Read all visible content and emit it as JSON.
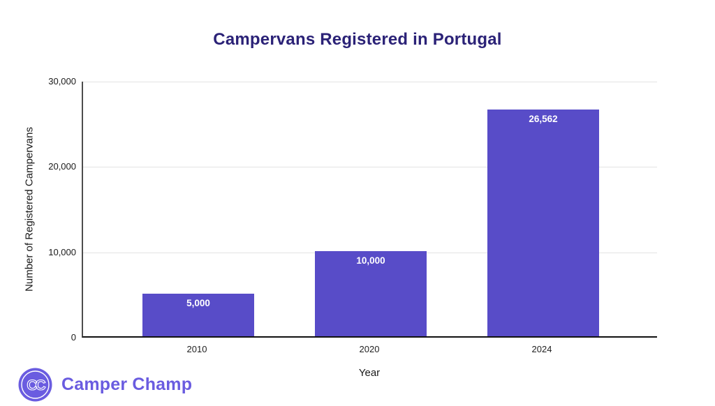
{
  "chart_data": {
    "type": "bar",
    "title": "Campervans Registered in Portugal",
    "categories": [
      "2010",
      "2020",
      "2024"
    ],
    "values": [
      5000,
      10000,
      26562
    ],
    "value_labels": [
      "5,000",
      "10,000",
      "26,562"
    ],
    "xlabel": "Year",
    "ylabel": "Number of Registered Campervans",
    "ylim": [
      0,
      30000
    ],
    "yticks": [
      0,
      10000,
      20000,
      30000
    ],
    "ytick_labels": [
      "0",
      "10,000",
      "20,000",
      "30,000"
    ],
    "grid": "horizontal",
    "legend": "none",
    "bar_color": "#584CC8",
    "bar_label_color": "#ffffff",
    "title_color": "#2B2277",
    "gridline_color": "#e3e3e3"
  },
  "branding": {
    "logo_icon": "CC",
    "logo_text": "Camper Champ",
    "logo_color": "#6A5CE0"
  }
}
